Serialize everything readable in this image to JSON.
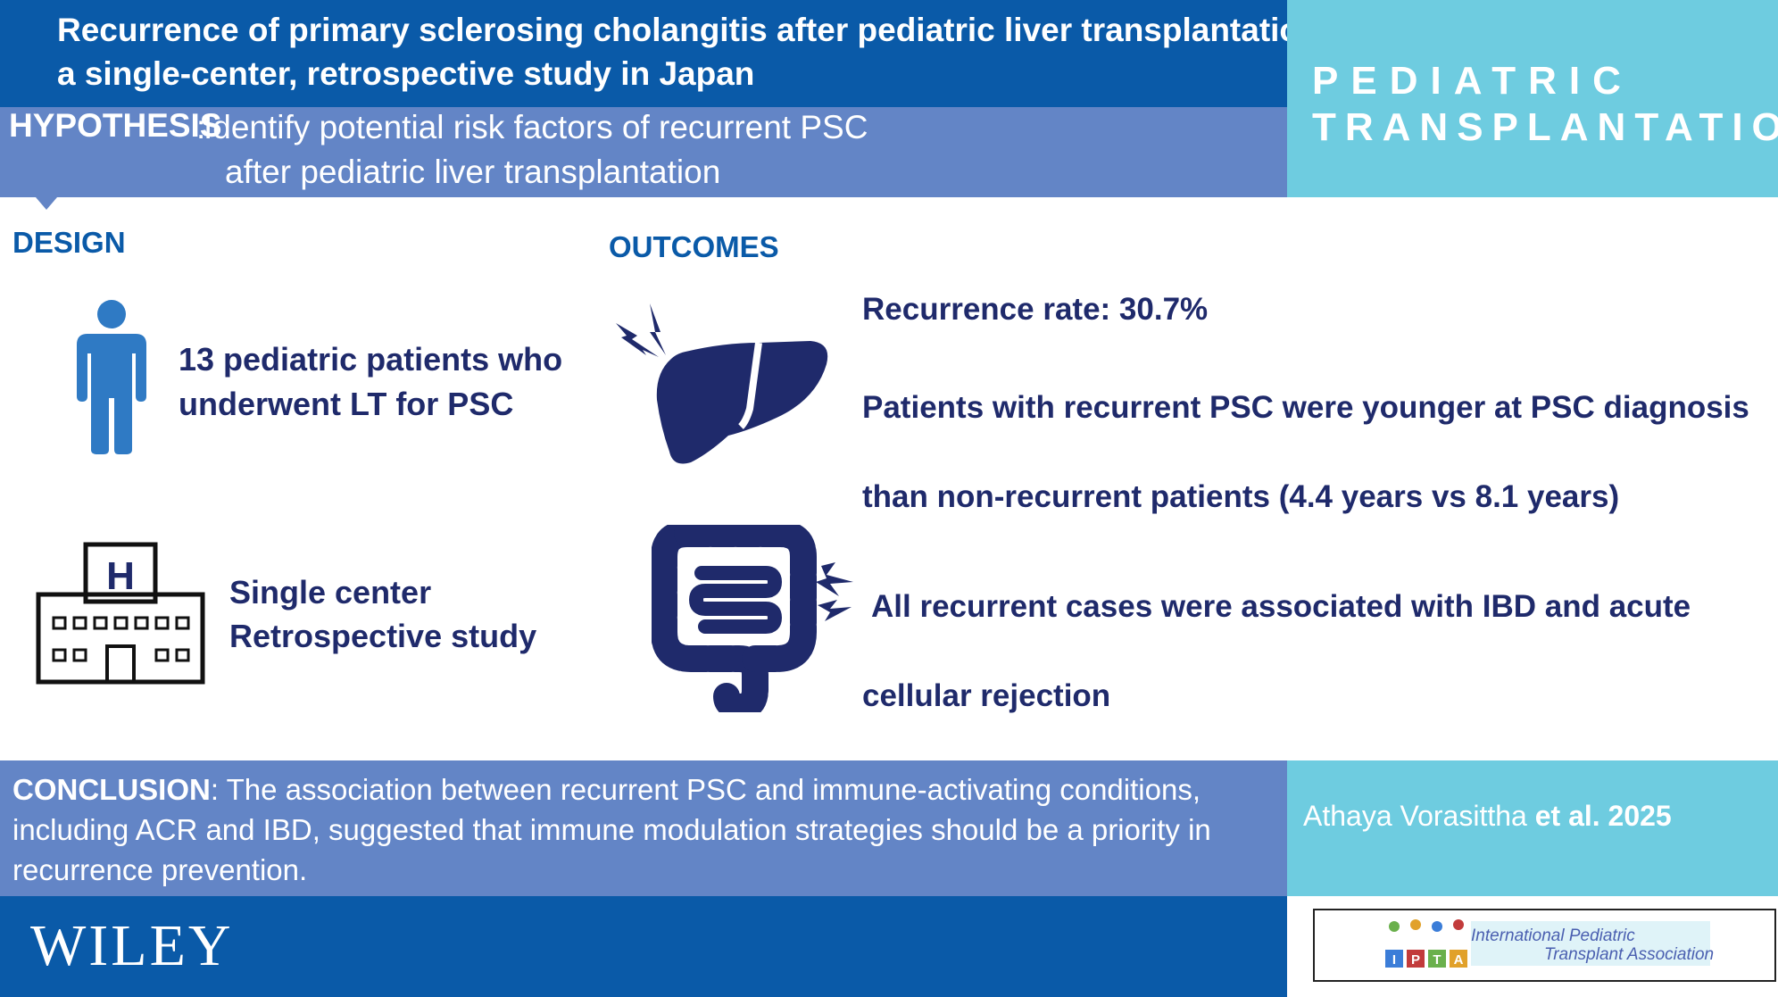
{
  "header": {
    "title_line1": "Recurrence of primary sclerosing cholangitis after pediatric liver transplantation:",
    "title_line2": "a single-center, retrospective study in Japan"
  },
  "hypothesis": {
    "label": "HYPOTHESIS",
    "line1": "Identify potential risk factors of recurrent PSC",
    "line2": "after pediatric liver transplantation"
  },
  "journal": {
    "line1": "PEDIATRIC",
    "line2": "TRANSPLANTATION"
  },
  "design": {
    "title": "DESIGN",
    "patients_line1": "13 pediatric patients who",
    "patients_line2": "underwent LT for PSC",
    "center_line1": "Single center",
    "center_line2": "Retrospective study",
    "hospital_letter": "H"
  },
  "outcomes": {
    "title": "OUTCOMES",
    "line1": "Recurrence rate: 30.7%",
    "line2": "Patients with recurrent PSC were younger at PSC diagnosis",
    "line3": "than non-recurrent patients (4.4 years vs 8.1 years)",
    "line4": "All recurrent cases were associated with IBD and acute",
    "line5": "cellular rejection"
  },
  "conclusion": {
    "label": "CONCLUSION",
    "text": ": The association between recurrent PSC and immune-activating conditions, including ACR and IBD, suggested that immune modulation strategies should be a priority in recurrence prevention."
  },
  "author": {
    "name": "Athaya Vorasittha ",
    "etal": "et al. 2025"
  },
  "footer": {
    "publisher": "WILEY",
    "ipta_line1": "International Pediatric",
    "ipta_line2": "Transplant Association",
    "ipta_blocks": [
      "I",
      "P",
      "T",
      "A"
    ]
  },
  "colors": {
    "dark_blue": "#0a5aa8",
    "mid_blue": "#6385c6",
    "light_cyan": "#6ecce0",
    "navy": "#1f2a6b",
    "icon_blue": "#2f7ac4"
  },
  "icons": [
    "person-icon",
    "hospital-icon",
    "liver-icon",
    "intestine-icon",
    "lightning-icon"
  ]
}
